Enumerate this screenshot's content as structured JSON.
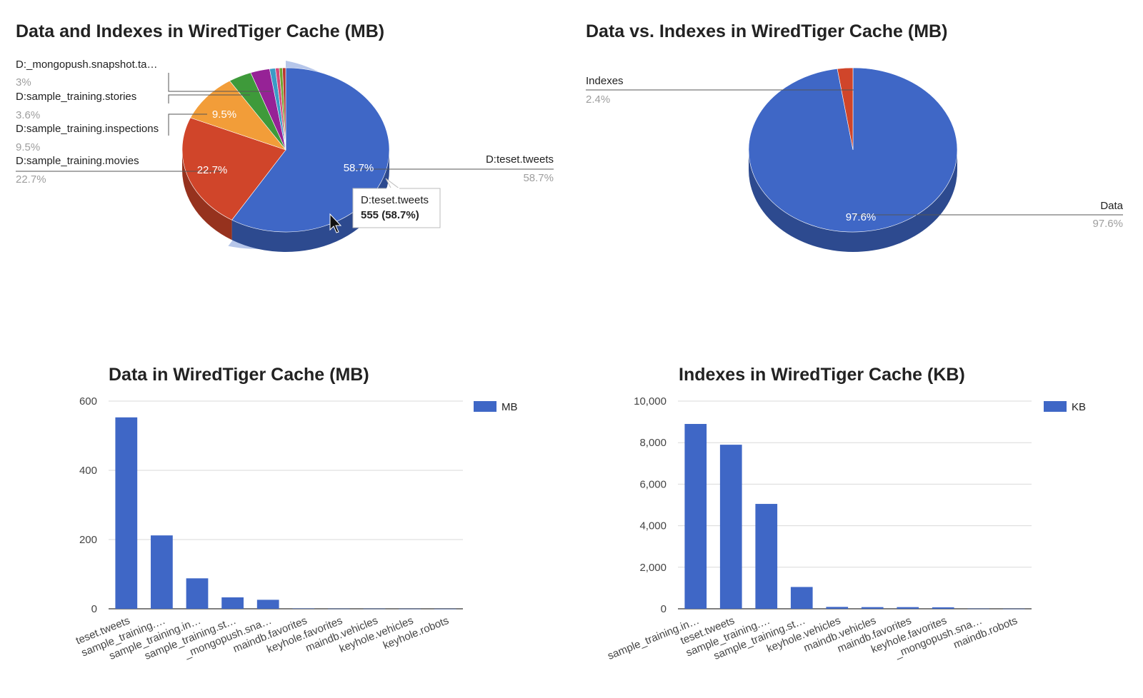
{
  "chart_data": [
    {
      "type": "pie",
      "title": "Data and Indexes in WiredTiger Cache (MB)",
      "slices": [
        {
          "label": "D:teset.tweets",
          "percent": 58.7,
          "color": "#3f67c6"
        },
        {
          "label": "D:sample_training.movies",
          "percent": 22.7,
          "color": "#d0452a"
        },
        {
          "label": "D:sample_training.inspections",
          "percent": 9.5,
          "color": "#f29d39"
        },
        {
          "label": "D:sample_training.stories",
          "percent": 3.6,
          "color": "#3e9a3a"
        },
        {
          "label": "D:_mongopush.snapshot.ta…",
          "percent": 3,
          "color": "#962296"
        },
        {
          "label": "",
          "percent": 0.9,
          "color": "#3a9bc6"
        },
        {
          "label": "",
          "percent": 0.6,
          "color": "#d4497a"
        },
        {
          "label": "",
          "percent": 0.5,
          "color": "#6da531"
        },
        {
          "label": "",
          "percent": 0.5,
          "color": "#b93330"
        }
      ],
      "pct_labels": [
        "58.7%",
        "22.7%",
        "9.5%",
        "3.6%",
        "3%"
      ],
      "inside_labels": [
        "58.7%",
        "22.7%",
        "9.5%"
      ],
      "tooltip": {
        "label": "D:teset.tweets",
        "value": "555 (58.7%)"
      }
    },
    {
      "type": "pie",
      "title": "Data vs. Indexes in WiredTiger Cache (MB)",
      "slices": [
        {
          "label": "Data",
          "percent": 97.6,
          "color": "#3f67c6"
        },
        {
          "label": "Indexes",
          "percent": 2.4,
          "color": "#d0452a"
        }
      ],
      "pct_labels": [
        "97.6%",
        "2.4%"
      ],
      "inside_labels": [
        "97.6%"
      ]
    },
    {
      "type": "bar",
      "title": "Data in WiredTiger Cache (MB)",
      "categories": [
        "teset.tweets",
        "sample_training.…",
        "sample_training.in…",
        "sample_training.st…",
        "_mongopush.sna…",
        "maindb.favorites",
        "keyhole.favorites",
        "maindb.vehicles",
        "keyhole.vehicles",
        "keyhole.robots"
      ],
      "series": [
        {
          "name": "MB",
          "values": [
            553,
            212,
            88,
            33,
            26,
            1,
            0.5,
            0.5,
            0.3,
            0.2
          ],
          "color": "#3f67c6"
        }
      ],
      "ylim": [
        0,
        600
      ],
      "yticks": [
        "0",
        "200",
        "400",
        "600"
      ],
      "legend_position": "right"
    },
    {
      "type": "bar",
      "title": "Indexes in WiredTiger Cache (KB)",
      "categories": [
        "sample_training.in…",
        "teset.tweets",
        "sample_training.…",
        "sample_training.st…",
        "keyhole.vehicles",
        "maindb.vehicles",
        "maindb.favorites",
        "keyhole.favorites",
        "_mongopush.sna…",
        "maindb.robots"
      ],
      "series": [
        {
          "name": "KB",
          "values": [
            8900,
            7900,
            5050,
            1050,
            90,
            80,
            80,
            70,
            10,
            5
          ],
          "color": "#3f67c6"
        }
      ],
      "ylim": [
        0,
        10000
      ],
      "yticks": [
        "0",
        "2,000",
        "4,000",
        "6,000",
        "8,000",
        "10,000"
      ],
      "legend_position": "right"
    }
  ]
}
